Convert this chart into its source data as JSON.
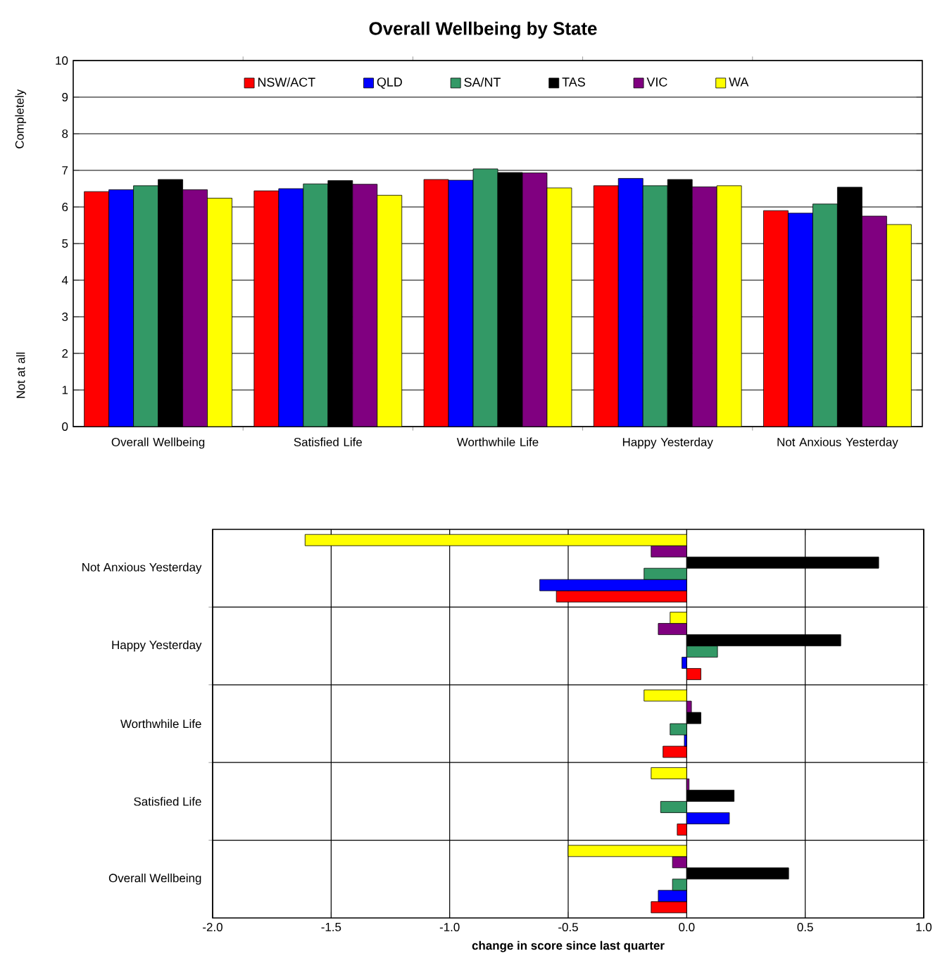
{
  "chart_data": [
    {
      "type": "bar",
      "title": "Overall Wellbeing by State",
      "categories": [
        "Overall Wellbeing",
        "Satisfied Life",
        "Worthwhile Life",
        "Happy Yesterday",
        "Not Anxious Yesterday"
      ],
      "series": [
        {
          "name": "NSW/ACT",
          "color": "#ff0000",
          "values": [
            6.42,
            6.44,
            6.75,
            6.58,
            5.9
          ]
        },
        {
          "name": "QLD",
          "color": "#0000ff",
          "values": [
            6.47,
            6.5,
            6.73,
            6.78,
            5.83
          ]
        },
        {
          "name": "SA/NT",
          "color": "#339966",
          "values": [
            6.58,
            6.63,
            7.04,
            6.58,
            6.08
          ]
        },
        {
          "name": "TAS",
          "color": "#000000",
          "values": [
            6.75,
            6.72,
            6.94,
            6.75,
            6.54
          ]
        },
        {
          "name": "VIC",
          "color": "#800080",
          "values": [
            6.47,
            6.62,
            6.93,
            6.55,
            5.75
          ]
        },
        {
          "name": "WA",
          "color": "#ffff00",
          "values": [
            6.24,
            6.32,
            6.52,
            6.58,
            5.52
          ]
        }
      ],
      "ylim": [
        0,
        10
      ],
      "yticks": [
        0,
        1,
        2,
        3,
        4,
        5,
        6,
        7,
        8,
        9,
        10
      ],
      "grid": "y",
      "legend": "top",
      "annotations": [
        "Completely",
        "Not at all"
      ]
    },
    {
      "type": "bar",
      "orientation": "horizontal",
      "categories": [
        "Not Anxious Yesterday",
        "Happy Yesterday",
        "Worthwhile Life",
        "Satisfied Life",
        "Overall Wellbeing"
      ],
      "series": [
        {
          "color": "#ff0000",
          "values": [
            -0.55,
            0.06,
            -0.1,
            -0.04,
            -0.15
          ]
        },
        {
          "color": "#0000ff",
          "values": [
            -0.62,
            -0.02,
            -0.01,
            0.18,
            -0.12
          ]
        },
        {
          "color": "#339966",
          "values": [
            -0.18,
            0.13,
            -0.07,
            -0.11,
            -0.06
          ]
        },
        {
          "color": "#000000",
          "values": [
            0.81,
            0.65,
            0.06,
            0.2,
            0.43
          ]
        },
        {
          "color": "#800080",
          "values": [
            -0.15,
            -0.12,
            0.02,
            0.01,
            -0.06
          ]
        },
        {
          "color": "#ffff00",
          "values": [
            -1.61,
            -0.07,
            -0.18,
            -0.15,
            -0.5
          ]
        }
      ],
      "xlabel": "change in score since last quarter",
      "xlim": [
        -2,
        1
      ],
      "xticks": [
        {
          "value": -2,
          "label": "-2.0"
        },
        {
          "value": -1.5,
          "label": "-1.5"
        },
        {
          "value": -1,
          "label": "-1.0"
        },
        {
          "value": -0.5,
          "label": "-0.5"
        },
        {
          "value": 0,
          "label": "0.0"
        },
        {
          "value": 0.5,
          "label": "0.5"
        },
        {
          "value": 1,
          "label": "1.0"
        }
      ],
      "grid": true
    }
  ]
}
